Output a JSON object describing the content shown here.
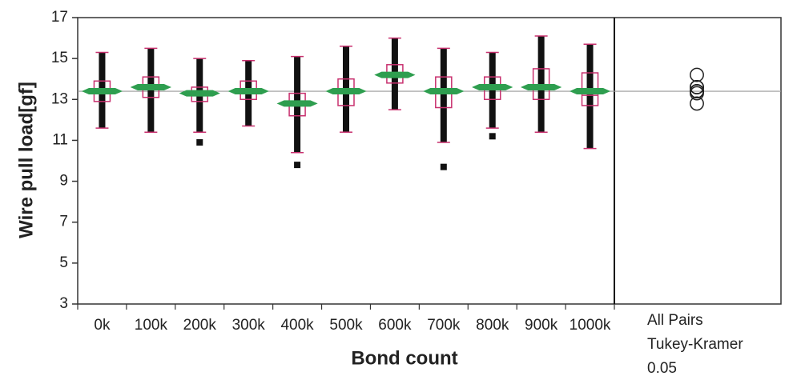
{
  "chart_data": {
    "type": "boxplot",
    "x_label": "Bond count",
    "y_label": "Wire pull load[gf]",
    "categories": [
      "0k",
      "100k",
      "200k",
      "300k",
      "400k",
      "500k",
      "600k",
      "700k",
      "800k",
      "900k",
      "1000k"
    ],
    "boxes": [
      {
        "min": 11.6,
        "q1": 12.9,
        "median": 13.3,
        "q3": 13.9,
        "max": 15.3,
        "mean": 13.4,
        "outliers": []
      },
      {
        "min": 11.4,
        "q1": 13.1,
        "median": 13.5,
        "q3": 14.1,
        "max": 15.5,
        "mean": 13.6,
        "outliers": []
      },
      {
        "min": 11.4,
        "q1": 12.9,
        "median": 13.3,
        "q3": 13.6,
        "max": 15.0,
        "mean": 13.3,
        "outliers": [
          10.9
        ]
      },
      {
        "min": 11.7,
        "q1": 13.0,
        "median": 13.4,
        "q3": 13.9,
        "max": 14.9,
        "mean": 13.4,
        "outliers": []
      },
      {
        "min": 10.4,
        "q1": 12.2,
        "median": 12.8,
        "q3": 13.3,
        "max": 15.1,
        "mean": 12.8,
        "outliers": [
          9.8
        ]
      },
      {
        "min": 11.4,
        "q1": 12.7,
        "median": 13.3,
        "q3": 14.0,
        "max": 15.6,
        "mean": 13.4,
        "outliers": []
      },
      {
        "min": 12.5,
        "q1": 13.8,
        "median": 14.2,
        "q3": 14.7,
        "max": 16.0,
        "mean": 14.2,
        "outliers": []
      },
      {
        "min": 10.9,
        "q1": 12.6,
        "median": 13.3,
        "q3": 14.1,
        "max": 15.5,
        "mean": 13.4,
        "outliers": [
          9.7
        ]
      },
      {
        "min": 11.6,
        "q1": 13.0,
        "median": 13.6,
        "q3": 14.1,
        "max": 15.3,
        "mean": 13.6,
        "outliers": [
          11.2
        ]
      },
      {
        "min": 11.4,
        "q1": 13.0,
        "median": 13.6,
        "q3": 14.5,
        "max": 16.1,
        "mean": 13.6,
        "outliers": []
      },
      {
        "min": 10.6,
        "q1": 12.7,
        "median": 13.2,
        "q3": 14.3,
        "max": 15.7,
        "mean": 13.4,
        "outliers": []
      }
    ],
    "grand_mean": 13.4,
    "ylim": [
      3,
      17
    ],
    "yticks": [
      3,
      5,
      7,
      9,
      11,
      13,
      15,
      17
    ],
    "box_color": "#c8306e",
    "mean_color": "#2e9e4f",
    "point_color": "#111111",
    "comparison_panel": {
      "label_lines": [
        "All Pairs",
        "Tukey-Kramer",
        "0.05"
      ]
    }
  }
}
